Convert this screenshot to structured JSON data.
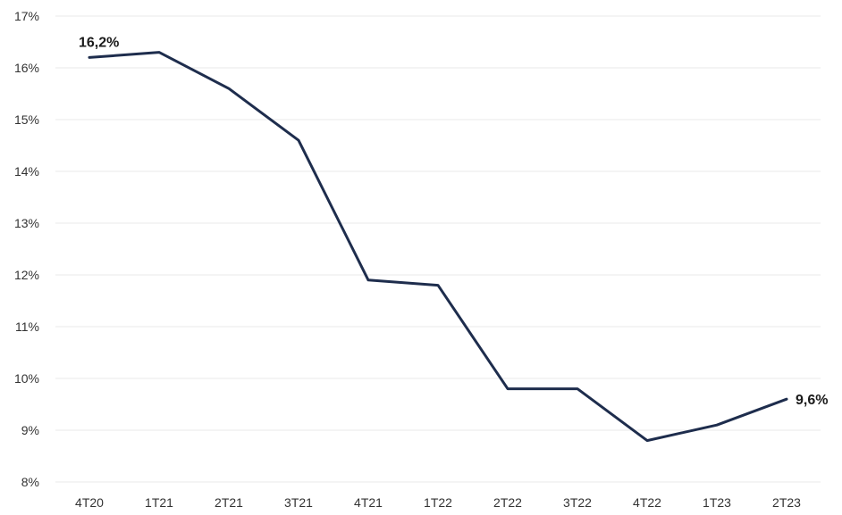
{
  "chart_data": {
    "type": "line",
    "title": "",
    "xlabel": "",
    "ylabel": "",
    "categories": [
      "4T20",
      "1T21",
      "2T21",
      "3T21",
      "4T21",
      "1T22",
      "2T22",
      "3T22",
      "4T22",
      "1T23",
      "2T23"
    ],
    "series": [
      {
        "values": [
          16.2,
          16.3,
          15.6,
          14.6,
          11.9,
          11.8,
          9.8,
          9.8,
          8.8,
          9.1,
          9.6
        ],
        "color": "#1e2d4d"
      }
    ],
    "ylim": [
      8,
      17
    ],
    "y_ticks": [
      {
        "value": 8,
        "label": "8%"
      },
      {
        "value": 9,
        "label": "9%"
      },
      {
        "value": 10,
        "label": "10%"
      },
      {
        "value": 11,
        "label": "11%"
      },
      {
        "value": 12,
        "label": "12%"
      },
      {
        "value": 13,
        "label": "13%"
      },
      {
        "value": 14,
        "label": "14%"
      },
      {
        "value": 15,
        "label": "15%"
      },
      {
        "value": 16,
        "label": "16%"
      },
      {
        "value": 17,
        "label": "17%"
      }
    ],
    "data_labels": [
      {
        "index": 0,
        "text": "16,2%"
      },
      {
        "index": 10,
        "text": "9,6%"
      }
    ],
    "grid": true,
    "legend": "none"
  }
}
